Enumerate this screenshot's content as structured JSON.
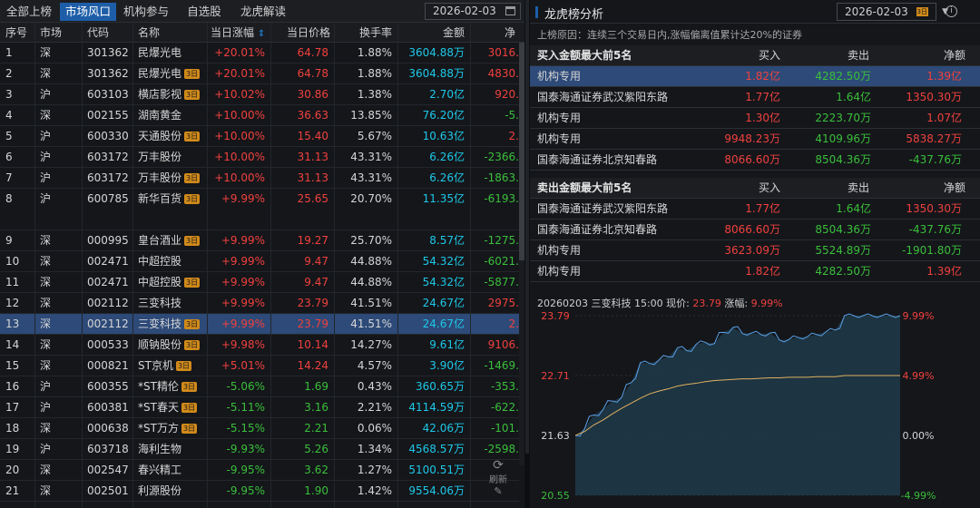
{
  "tabs": [
    "全部上榜",
    "市场风口",
    "机构参与",
    "自选股",
    "龙虎解读"
  ],
  "active_tab": 1,
  "date": "2026-02-03",
  "columns": [
    "序号",
    "市场",
    "代码",
    "名称",
    "当日涨幅",
    "当日价格",
    "换手率",
    "金额",
    "净"
  ],
  "sort_arrow": "⇕",
  "rows": [
    {
      "no": "1",
      "mkt": "深",
      "code": "301362",
      "name": "民爆光电",
      "badge": "",
      "chg": "+20.01%",
      "price": "64.78",
      "turn": "1.88%",
      "amt": "3604.88万",
      "net": "3016."
    },
    {
      "no": "2",
      "mkt": "深",
      "code": "301362",
      "name": "民爆光电",
      "badge": "3日",
      "chg": "+20.01%",
      "price": "64.78",
      "turn": "1.88%",
      "amt": "3604.88万",
      "net": "4830."
    },
    {
      "no": "3",
      "mkt": "沪",
      "code": "603103",
      "name": "横店影视",
      "badge": "3日",
      "chg": "+10.02%",
      "price": "30.86",
      "turn": "1.38%",
      "amt": "2.70亿",
      "net": "920."
    },
    {
      "no": "4",
      "mkt": "深",
      "code": "002155",
      "name": "湖南黄金",
      "badge": "",
      "chg": "+10.00%",
      "price": "36.63",
      "turn": "13.85%",
      "amt": "76.20亿",
      "net": "-5."
    },
    {
      "no": "5",
      "mkt": "沪",
      "code": "600330",
      "name": "天通股份",
      "badge": "3日",
      "chg": "+10.00%",
      "price": "15.40",
      "turn": "5.67%",
      "amt": "10.63亿",
      "net": "2."
    },
    {
      "no": "6",
      "mkt": "沪",
      "code": "603172",
      "name": "万丰股份",
      "badge": "",
      "chg": "+10.00%",
      "price": "31.13",
      "turn": "43.31%",
      "amt": "6.26亿",
      "net": "-2366."
    },
    {
      "no": "7",
      "mkt": "沪",
      "code": "603172",
      "name": "万丰股份",
      "badge": "3日",
      "chg": "+10.00%",
      "price": "31.13",
      "turn": "43.31%",
      "amt": "6.26亿",
      "net": "-1863."
    },
    {
      "no": "8",
      "mkt": "沪",
      "code": "600785",
      "name": "新华百货",
      "badge": "3日",
      "chg": "+9.99%",
      "price": "25.65",
      "turn": "20.70%",
      "amt": "11.35亿",
      "net": "-6193."
    },
    {
      "no": "9",
      "mkt": "深",
      "code": "000995",
      "name": "皇台酒业",
      "badge": "3日",
      "chg": "+9.99%",
      "price": "19.27",
      "turn": "25.70%",
      "amt": "8.57亿",
      "net": "-1275."
    },
    {
      "no": "10",
      "mkt": "深",
      "code": "002471",
      "name": "中超控股",
      "badge": "",
      "chg": "+9.99%",
      "price": "9.47",
      "turn": "44.88%",
      "amt": "54.32亿",
      "net": "-6021."
    },
    {
      "no": "11",
      "mkt": "深",
      "code": "002471",
      "name": "中超控股",
      "badge": "3日",
      "chg": "+9.99%",
      "price": "9.47",
      "turn": "44.88%",
      "amt": "54.32亿",
      "net": "-5877."
    },
    {
      "no": "12",
      "mkt": "深",
      "code": "002112",
      "name": "三变科技",
      "badge": "",
      "chg": "+9.99%",
      "price": "23.79",
      "turn": "41.51%",
      "amt": "24.67亿",
      "net": "2975."
    },
    {
      "no": "13",
      "mkt": "深",
      "code": "002112",
      "name": "三变科技",
      "badge": "3日",
      "chg": "+9.99%",
      "price": "23.79",
      "turn": "41.51%",
      "amt": "24.67亿",
      "net": "2."
    },
    {
      "no": "14",
      "mkt": "深",
      "code": "000533",
      "name": "顺钠股份",
      "badge": "3日",
      "chg": "+9.98%",
      "price": "10.14",
      "turn": "14.27%",
      "amt": "9.61亿",
      "net": "9106."
    },
    {
      "no": "15",
      "mkt": "深",
      "code": "000821",
      "name": "ST京机",
      "badge": "3日",
      "chg": "+5.01%",
      "price": "14.24",
      "turn": "4.57%",
      "amt": "3.90亿",
      "net": "-1469."
    },
    {
      "no": "16",
      "mkt": "沪",
      "code": "600355",
      "name": "*ST精伦",
      "badge": "3日",
      "chg": "-5.06%",
      "price": "1.69",
      "turn": "0.43%",
      "amt": "360.65万",
      "net": "-353."
    },
    {
      "no": "17",
      "mkt": "沪",
      "code": "600381",
      "name": "*ST春天",
      "badge": "3日",
      "chg": "-5.11%",
      "price": "3.16",
      "turn": "2.21%",
      "amt": "4114.59万",
      "net": "-622."
    },
    {
      "no": "18",
      "mkt": "深",
      "code": "000638",
      "name": "*ST万方",
      "badge": "3日",
      "chg": "-5.15%",
      "price": "2.21",
      "turn": "0.06%",
      "amt": "42.06万",
      "net": "-101."
    },
    {
      "no": "19",
      "mkt": "沪",
      "code": "603718",
      "name": "海利生物",
      "badge": "",
      "chg": "-9.93%",
      "price": "5.26",
      "turn": "1.34%",
      "amt": "4568.57万",
      "net": "-2598."
    },
    {
      "no": "20",
      "mkt": "深",
      "code": "002547",
      "name": "春兴精工",
      "badge": "",
      "chg": "-9.95%",
      "price": "3.62",
      "turn": "1.27%",
      "amt": "5100.51万",
      "net": ""
    },
    {
      "no": "21",
      "mkt": "深",
      "code": "002501",
      "name": "利源股份",
      "badge": "",
      "chg": "-9.95%",
      "price": "1.90",
      "turn": "1.42%",
      "amt": "9554.06万",
      "net": ""
    }
  ],
  "selected_row": 12,
  "refresh_label": "刷新",
  "panel": {
    "title": "龙虎榜分析",
    "date": "2026-02-03",
    "date_badge": "3日",
    "reason_label": "上榜原因：",
    "reason": "连续三个交易日内,涨幅偏离值累计达20%的证券",
    "buy_header": "买入金额最大前5名",
    "sell_header": "卖出金额最大前5名",
    "col_buy": "买入",
    "col_sell": "卖出",
    "col_net": "净额",
    "buy_rows": [
      {
        "name": "机构专用",
        "buy": "1.82亿",
        "sell": "4282.50万",
        "net": "1.39亿",
        "net_color": "red"
      },
      {
        "name": "国泰海通证券武汉紫阳东路",
        "buy": "1.77亿",
        "sell": "1.64亿",
        "net": "1350.30万",
        "net_color": "red"
      },
      {
        "name": "机构专用",
        "buy": "1.30亿",
        "sell": "2223.70万",
        "net": "1.07亿",
        "net_color": "red"
      },
      {
        "name": "机构专用",
        "buy": "9948.23万",
        "sell": "4109.96万",
        "net": "5838.27万",
        "net_color": "red"
      },
      {
        "name": "国泰海通证券北京知春路",
        "buy": "8066.60万",
        "sell": "8504.36万",
        "net": "-437.76万",
        "net_color": "green"
      }
    ],
    "sell_rows": [
      {
        "name": "国泰海通证券武汉紫阳东路",
        "buy": "1.77亿",
        "sell": "1.64亿",
        "net": "1350.30万",
        "net_color": "red"
      },
      {
        "name": "国泰海通证券北京知春路",
        "buy": "8066.60万",
        "sell": "8504.36万",
        "net": "-437.76万",
        "net_color": "green"
      },
      {
        "name": "机构专用",
        "buy": "3623.09万",
        "sell": "5524.89万",
        "net": "-1901.80万",
        "net_color": "green"
      },
      {
        "name": "机构专用",
        "buy": "1.82亿",
        "sell": "4282.50万",
        "net": "1.39亿",
        "net_color": "red"
      }
    ],
    "chart_head": "20260203 三变科技 15:00 现价:",
    "chart_price": "23.79",
    "chart_chg_label": "涨幅:",
    "chart_chg": "9.99%"
  },
  "chart_data": {
    "type": "line",
    "title": "20260203 三变科技 15:00 现价: 23.79 涨幅: 9.99%",
    "ylabels_left": [
      "23.79",
      "22.71",
      "21.63",
      "20.55"
    ],
    "ylabels_right": [
      "9.99%",
      "4.99%",
      "0.00%",
      "-4.99%"
    ],
    "ylim": [
      20.55,
      23.79
    ],
    "colors": {
      "price": "#5aa0e6",
      "avg": "#e0b060"
    },
    "series": [
      {
        "values": [
          21.63,
          21.75,
          22.0,
          22.1,
          22.25,
          22.32,
          22.58,
          22.94,
          22.93,
          22.99,
          23.05,
          23.21,
          23.16,
          23.27,
          23.31,
          23.29,
          23.49,
          23.58,
          23.47,
          23.48,
          23.45,
          23.48,
          23.35,
          23.36,
          23.4,
          23.41,
          23.45,
          23.5,
          23.53,
          23.79,
          23.79,
          23.79,
          23.79,
          23.79,
          23.79,
          23.79
        ]
      },
      {
        "values": [
          21.63,
          21.7,
          21.82,
          21.91,
          22.02,
          22.12,
          22.21,
          22.3,
          22.38,
          22.43,
          22.47,
          22.52,
          22.55,
          22.57,
          22.6,
          22.62,
          22.63,
          22.64,
          22.65,
          22.65,
          22.66,
          22.67,
          22.67,
          22.68,
          22.68,
          22.68,
          22.69,
          22.69,
          22.69,
          22.71,
          22.71,
          22.71,
          22.71,
          22.71,
          22.71,
          22.71
        ]
      }
    ]
  }
}
